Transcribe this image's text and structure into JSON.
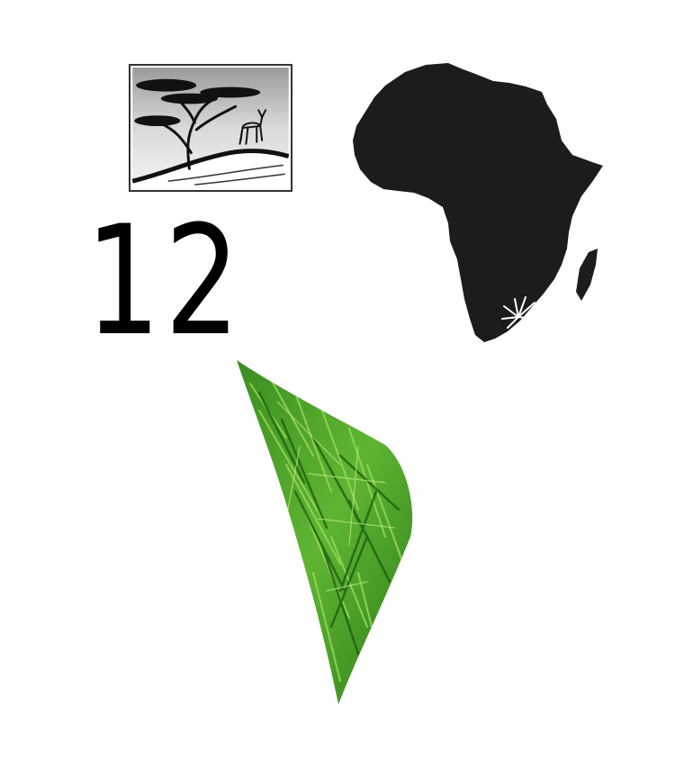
{
  "number_label": "12",
  "icons": {
    "savanna": "savanna-tree-antelope-icon",
    "map": "africa-map-icon",
    "marker": "sunburst-marker-icon",
    "grass": "grass-texture-shape"
  },
  "colors": {
    "map_fill": "#1c1c1c",
    "panel_border": "#333333",
    "grass_dark": "#2f7d1a",
    "grass_light": "#8fd14a"
  }
}
